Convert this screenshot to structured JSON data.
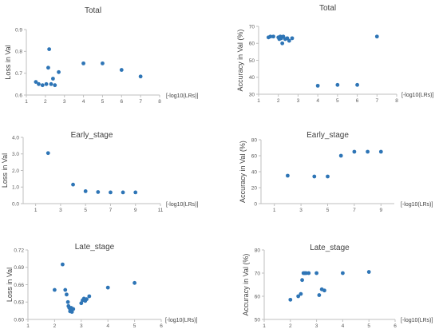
{
  "chart_data": [
    {
      "type": "scatter",
      "title": "Total",
      "xlabel": "[-log10(LRs)]",
      "ylabel": "Loss in Val",
      "xlim": [
        1,
        8
      ],
      "ylim": [
        0.6,
        0.9
      ],
      "xticks": [
        1,
        2,
        3,
        4,
        5,
        6,
        7,
        8
      ],
      "yticks": [
        0.6,
        0.7,
        0.8,
        0.9
      ],
      "ytick_labels": [
        "0.6",
        "0.7",
        "0.8",
        "0.9"
      ],
      "x": [
        1.5,
        1.65,
        1.85,
        2.05,
        2.15,
        2.2,
        2.3,
        2.4,
        2.5,
        2.7,
        4,
        5,
        6,
        7
      ],
      "y": [
        0.66,
        0.65,
        0.645,
        0.65,
        0.725,
        0.81,
        0.65,
        0.675,
        0.645,
        0.705,
        0.745,
        0.745,
        0.715,
        0.685
      ]
    },
    {
      "type": "scatter",
      "title": "Total",
      "xlabel": "[-log10(LRs)]",
      "ylabel": "Accuracy in Val (%)",
      "xlim": [
        1,
        8
      ],
      "ylim": [
        30,
        70
      ],
      "xticks": [
        1,
        2,
        3,
        4,
        5,
        6,
        7,
        8
      ],
      "yticks": [
        30,
        40,
        50,
        60,
        70
      ],
      "ytick_labels": [
        "30",
        "40",
        "50",
        "60",
        "70"
      ],
      "x": [
        1.5,
        1.6,
        1.75,
        2.0,
        2.05,
        2.1,
        2.15,
        2.2,
        2.25,
        2.35,
        2.45,
        2.55,
        2.7,
        4,
        5,
        6,
        7
      ],
      "y": [
        63.5,
        64,
        64,
        63.5,
        62.5,
        64,
        63,
        60,
        64,
        62.5,
        63,
        61.5,
        63,
        35,
        35.5,
        35.5,
        64
      ]
    },
    {
      "type": "scatter",
      "title": "Early_stage",
      "xlabel": "[-log10(LRs)]",
      "ylabel": "Loss in Val",
      "xlim": [
        0,
        11
      ],
      "ylim": [
        0,
        4
      ],
      "xticks": [
        1,
        3,
        5,
        7,
        9,
        11
      ],
      "yticks": [
        0,
        1,
        2,
        3,
        4
      ],
      "ytick_labels": [
        "0.0",
        "1.0",
        "2.0",
        "3.0",
        "4.0"
      ],
      "x": [
        2,
        4,
        5,
        6,
        7,
        8,
        9
      ],
      "y": [
        3.05,
        1.15,
        0.75,
        0.7,
        0.68,
        0.68,
        0.68
      ]
    },
    {
      "type": "scatter",
      "title": "Early_stage",
      "xlabel": "[-log10(LRs)]",
      "ylabel": "Accuracy in Val (%)",
      "xlim": [
        0,
        10
      ],
      "ylim": [
        0,
        80
      ],
      "xticks": [
        1,
        3,
        5,
        7,
        9
      ],
      "yticks": [
        0,
        20,
        40,
        60,
        80
      ],
      "ytick_labels": [
        "0",
        "20",
        "40",
        "60",
        "80"
      ],
      "x": [
        2,
        4,
        5,
        6,
        7,
        8,
        9
      ],
      "y": [
        35,
        34,
        34,
        60,
        65,
        65,
        65
      ]
    },
    {
      "type": "scatter",
      "title": "Late_stage",
      "xlabel": "[-log10(LRs)]",
      "ylabel": "Loss in Val",
      "xlim": [
        1,
        6
      ],
      "ylim": [
        0.6,
        0.72
      ],
      "xticks": [
        1,
        2,
        3,
        4,
        5,
        6
      ],
      "yticks": [
        0.6,
        0.63,
        0.66,
        0.69,
        0.72
      ],
      "ytick_labels": [
        "0.60",
        "0.63",
        "0.66",
        "0.69",
        "0.72"
      ],
      "x": [
        2.0,
        2.3,
        2.4,
        2.45,
        2.5,
        2.52,
        2.55,
        2.58,
        2.6,
        2.62,
        2.65,
        2.7,
        3.0,
        3.05,
        3.1,
        3.15,
        3.2,
        3.3,
        4.0,
        5.0
      ],
      "y": [
        0.651,
        0.695,
        0.651,
        0.643,
        0.63,
        0.623,
        0.62,
        0.614,
        0.617,
        0.62,
        0.613,
        0.618,
        0.628,
        0.633,
        0.636,
        0.632,
        0.635,
        0.64,
        0.655,
        0.663
      ]
    },
    {
      "type": "scatter",
      "title": "Late_stage",
      "xlabel": "[-log10(LRs)]",
      "ylabel": "Accuracy in Val (%)",
      "xlim": [
        1,
        6
      ],
      "ylim": [
        50,
        80
      ],
      "xticks": [
        1,
        2,
        3,
        4,
        5,
        6
      ],
      "yticks": [
        50,
        60,
        70,
        80
      ],
      "ytick_labels": [
        "50",
        "60",
        "70",
        "80"
      ],
      "x": [
        2.0,
        2.3,
        2.4,
        2.45,
        2.5,
        2.55,
        2.6,
        2.7,
        3.0,
        3.1,
        3.2,
        3.3,
        4.0,
        5.0
      ],
      "y": [
        58.5,
        60,
        61,
        67,
        70,
        70,
        70,
        70,
        70,
        60.5,
        63,
        62.5,
        70,
        70.5
      ]
    }
  ]
}
